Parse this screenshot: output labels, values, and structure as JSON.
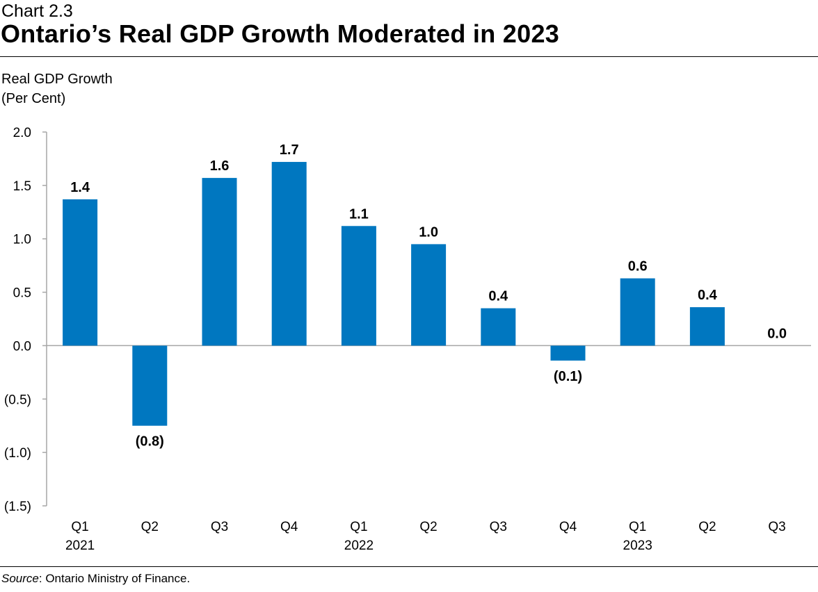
{
  "header": {
    "chart_number": "Chart 2.3",
    "title": "Ontario’s Real GDP Growth Moderated in 2023"
  },
  "source": {
    "label": "Source",
    "text": ": Ontario Ministry of Finance."
  },
  "colors": {
    "bar": "#0077c0",
    "axis": "#a6a6a6"
  },
  "chart_data": {
    "type": "bar",
    "title": "Ontario’s Real GDP Growth Moderated in 2023",
    "ylabel_line1": "Real GDP Growth",
    "ylabel_line2": "(Per Cent)",
    "ylim": [
      -1.5,
      2.0
    ],
    "yticks": [
      2.0,
      1.5,
      1.0,
      0.5,
      0.0,
      -0.5,
      -1.0,
      -1.5
    ],
    "ytick_labels": [
      "2.0",
      "1.5",
      "1.0",
      "0.5",
      "0.0",
      "(0.5)",
      "(1.0)",
      "(1.5)"
    ],
    "grid": false,
    "categories": [
      "Q1",
      "Q2",
      "Q3",
      "Q4",
      "Q1",
      "Q2",
      "Q3",
      "Q4",
      "Q1",
      "Q2",
      "Q3"
    ],
    "year_labels": [
      "2021",
      "",
      "",
      "",
      "2022",
      "",
      "",
      "",
      "2023",
      "",
      ""
    ],
    "values": [
      1.37,
      -0.75,
      1.57,
      1.72,
      1.12,
      0.95,
      0.35,
      -0.14,
      0.63,
      0.36,
      0.0
    ],
    "data_labels": [
      "1.4",
      "(0.8)",
      "1.6",
      "1.7",
      "1.1",
      "1.0",
      "0.4",
      "(0.1)",
      "0.6",
      "0.4",
      "0.0"
    ]
  }
}
